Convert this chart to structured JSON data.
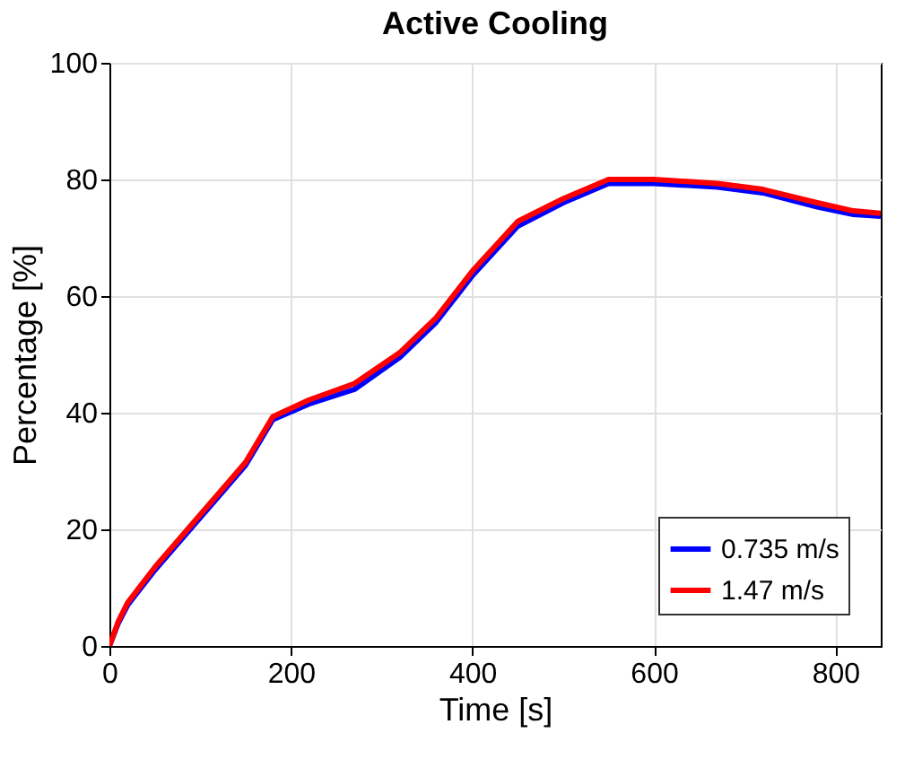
{
  "chart_data": {
    "type": "line",
    "title": "Active Cooling",
    "xlabel": "Time [s]",
    "ylabel": "Percentage [%]",
    "xlim": [
      0,
      850
    ],
    "ylim": [
      0,
      100
    ],
    "xticks": [
      0,
      200,
      400,
      600,
      800
    ],
    "yticks": [
      0,
      20,
      40,
      60,
      80,
      100
    ],
    "grid": true,
    "legend": "bottom right",
    "line_style": "solid",
    "marker": "none",
    "series": [
      {
        "name": "0.735 m/s",
        "color": "#0000ff",
        "x": [
          0,
          10,
          20,
          50,
          100,
          150,
          180,
          220,
          270,
          320,
          360,
          400,
          450,
          500,
          550,
          600,
          670,
          720,
          780,
          820,
          850
        ],
        "values": [
          0,
          4,
          7,
          13,
          22,
          31,
          38.8,
          41.5,
          44,
          49.5,
          55.5,
          63.5,
          72,
          76,
          79.3,
          79.3,
          78.7,
          77.7,
          75.3,
          74,
          73.7
        ]
      },
      {
        "name": "1.47 m/s",
        "color": "#ff0000",
        "x": [
          0,
          10,
          20,
          50,
          100,
          150,
          180,
          220,
          270,
          320,
          360,
          400,
          450,
          500,
          550,
          600,
          670,
          720,
          780,
          820,
          850
        ],
        "values": [
          0,
          4.3,
          7.4,
          13.5,
          22.5,
          31.5,
          39.3,
          42.2,
          45,
          50.3,
          56.3,
          64.3,
          72.8,
          76.7,
          80,
          80,
          79.3,
          78.3,
          76,
          74.6,
          74.2
        ]
      }
    ]
  }
}
